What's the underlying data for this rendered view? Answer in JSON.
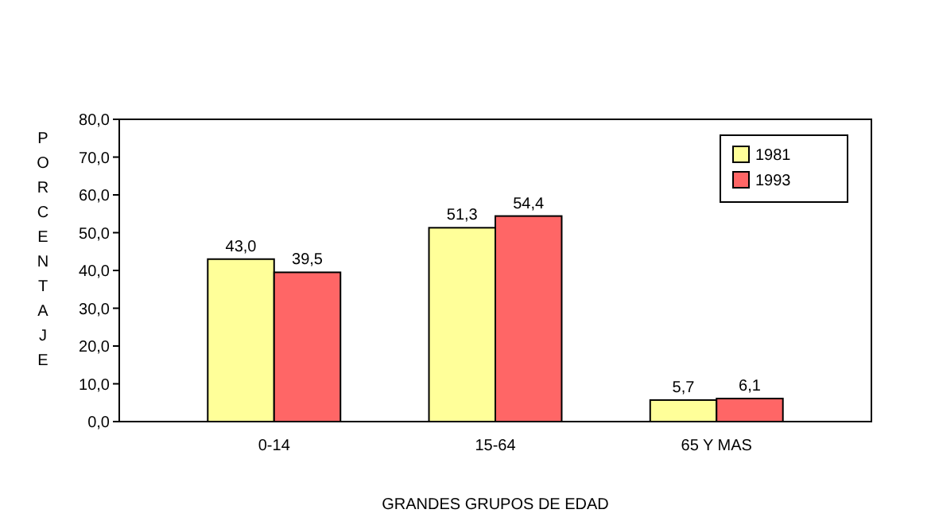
{
  "chart_data": {
    "type": "bar",
    "ylabel": "PORCENTAJE",
    "xlabel": "GRANDES GRUPOS DE EDAD",
    "categories": [
      "0-14",
      "15-64",
      "65 Y MAS"
    ],
    "series": [
      {
        "name": "1981",
        "color": "#ffff99",
        "values": [
          43.0,
          51.3,
          5.7
        ],
        "value_labels": [
          "43,0",
          "51,3",
          "5,7"
        ]
      },
      {
        "name": "1993",
        "color": "#ff6666",
        "values": [
          39.5,
          54.4,
          6.1
        ],
        "value_labels": [
          "39,5",
          "54,4",
          "6,1"
        ]
      }
    ],
    "ylim": [
      0,
      80
    ],
    "yticks": [
      {
        "value": 0,
        "label": "0,0"
      },
      {
        "value": 10,
        "label": "10,0"
      },
      {
        "value": 20,
        "label": "20,0"
      },
      {
        "value": 30,
        "label": "30,0"
      },
      {
        "value": 40,
        "label": "40,0"
      },
      {
        "value": 50,
        "label": "50,0"
      },
      {
        "value": 60,
        "label": "60,0"
      },
      {
        "value": 70,
        "label": "70,0"
      },
      {
        "value": 80,
        "label": "80,0"
      }
    ],
    "legend": "top right",
    "grid": false
  }
}
